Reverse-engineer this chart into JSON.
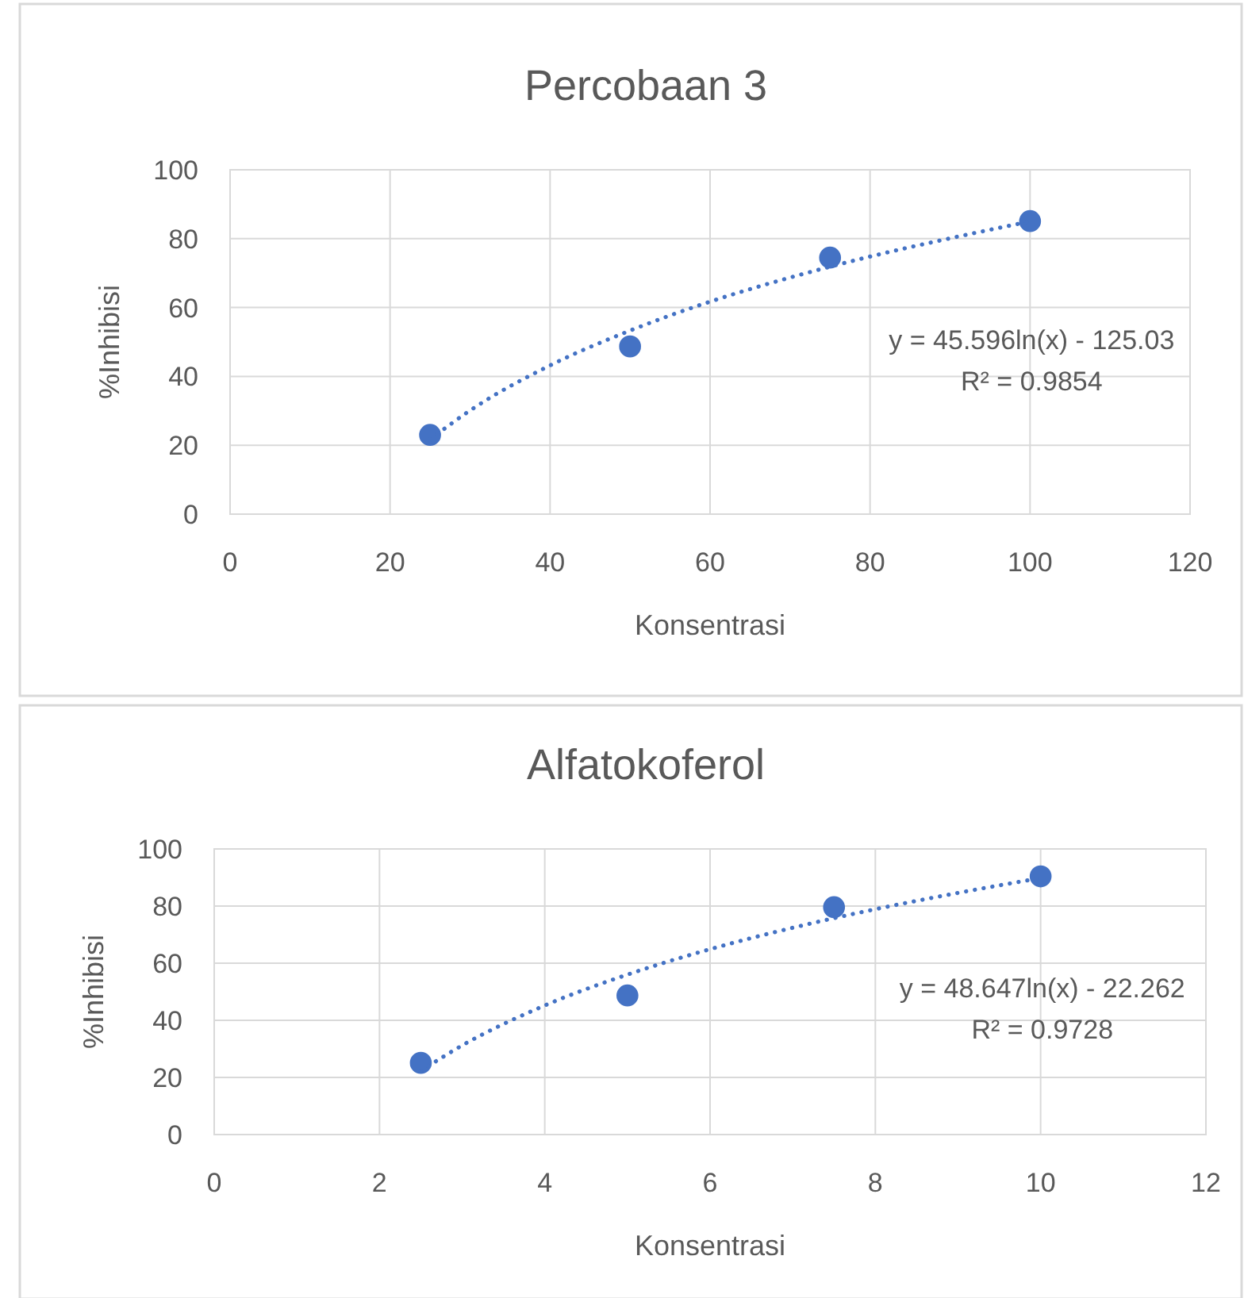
{
  "chart_data": [
    {
      "type": "scatter",
      "title": "Percobaan 3",
      "xlabel": "Konsentrasi",
      "ylabel": "%Inhibisi",
      "xlim": [
        0,
        120
      ],
      "xticks": [
        0,
        20,
        40,
        60,
        80,
        100,
        120
      ],
      "ylim": [
        0,
        100
      ],
      "yticks": [
        0,
        20,
        40,
        60,
        80,
        100
      ],
      "grid": true,
      "marker": "circle",
      "annotations": [
        "y = 45.596ln(x) - 125.03",
        "R² = 0.9854"
      ],
      "series": [
        {
          "color": "#4472c4",
          "x": [
            25,
            50,
            75,
            100
          ],
          "values": [
            23,
            48.7,
            74.5,
            85.1
          ]
        },
        {
          "type": "line",
          "color": "#4472c4",
          "line_style": "dotted",
          "marker": "none",
          "x": [
            25,
            30,
            40,
            50,
            60,
            70,
            80,
            90,
            100
          ],
          "values": [
            21.7,
            30.1,
            43.2,
            53.3,
            61.7,
            68.7,
            74.8,
            80.1,
            85.0
          ]
        }
      ]
    },
    {
      "type": "scatter",
      "title": "Alfatokoferol",
      "xlabel": "Konsentrasi",
      "ylabel": "%Inhibisi",
      "xlim": [
        0,
        12
      ],
      "xticks": [
        0,
        2,
        4,
        6,
        8,
        10,
        12
      ],
      "ylim": [
        0,
        100
      ],
      "yticks": [
        0,
        20,
        40,
        60,
        80,
        100
      ],
      "grid": true,
      "marker": "circle",
      "annotations": [
        "y = 48.647ln(x) - 22.262",
        "R² = 0.9728"
      ],
      "series": [
        {
          "color": "#4472c4",
          "x": [
            2.5,
            5,
            7.5,
            10
          ],
          "values": [
            25.1,
            48.7,
            79.6,
            90.4
          ]
        },
        {
          "type": "line",
          "color": "#4472c4",
          "line_style": "dotted",
          "marker": "none",
          "x": [
            2.5,
            3,
            4,
            5,
            6,
            7,
            8,
            9,
            10
          ],
          "values": [
            22.3,
            31.2,
            45.2,
            56.0,
            64.9,
            72.4,
            78.9,
            84.6,
            89.8
          ]
        }
      ]
    }
  ]
}
